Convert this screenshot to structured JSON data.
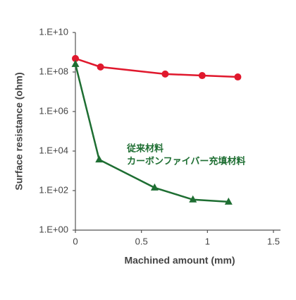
{
  "chart_data": {
    "type": "line",
    "xlabel": "Machined amount (mm)",
    "ylabel": "Surface resistance (ohm)",
    "annotations": [
      "従来材料",
      "カーボンファイバー充填材料"
    ],
    "annotation_color": "#1e6e32",
    "series": [
      {
        "color": "#e0182d",
        "marker": "circle",
        "x": [
          0,
          0.19,
          0.68,
          0.96,
          1.23
        ],
        "values": [
          480000000,
          180000000,
          79000000,
          66000000,
          56000000
        ]
      },
      {
        "color": "#1e6e32",
        "marker": "triangle",
        "x": [
          0,
          0.18,
          0.6,
          0.89,
          1.16
        ],
        "values": [
          250000000,
          3700,
          140,
          35,
          27
        ]
      }
    ],
    "xlim": [
      0,
      1.5
    ],
    "xticks": [
      0,
      0.5,
      1,
      1.5
    ],
    "ylim": [
      1,
      10000000000
    ],
    "log_y": true,
    "yticks": [
      {
        "value": 1,
        "label": "1.E+00"
      },
      {
        "value": 100,
        "label": "1.E+02"
      },
      {
        "value": 10000,
        "label": "1.E+04"
      },
      {
        "value": 1000000,
        "label": "1.E+06"
      },
      {
        "value": 100000000,
        "label": "1.E+08"
      },
      {
        "value": 10000000000,
        "label": "1.E+10"
      }
    ]
  }
}
